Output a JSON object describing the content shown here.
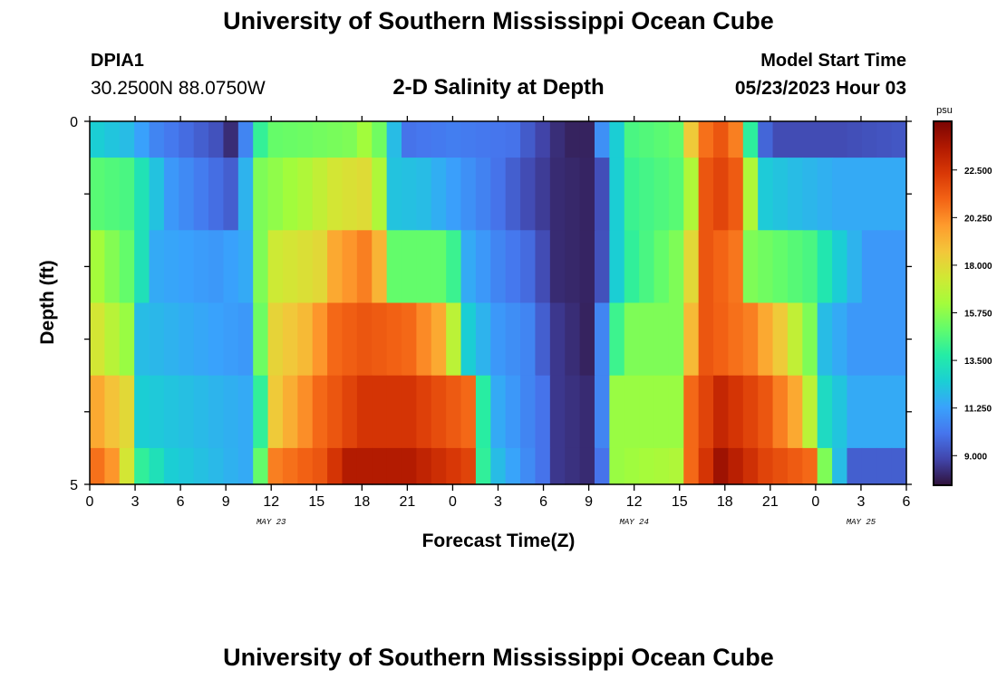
{
  "header": {
    "title": "University of Southern Mississippi Ocean Cube",
    "station_id": "DPIA1",
    "coordinates": "30.2500N  88.0750W",
    "plot_title": "2-D Salinity at Depth",
    "model_start_label": "Model Start Time",
    "model_start_value": "05/23/2023 Hour 03"
  },
  "footer": {
    "title": "University of Southern Mississippi Ocean Cube"
  },
  "colors": {
    "ramp": [
      "#30123b",
      "#4145ab",
      "#4675ed",
      "#39a2fc",
      "#1bcfd4",
      "#24eca6",
      "#61fc6c",
      "#a4fc3b",
      "#d1e834",
      "#f3c63a",
      "#fe9b2d",
      "#f36315",
      "#d93806",
      "#b11901",
      "#7a0403"
    ]
  },
  "chart_data": {
    "type": "heatmap",
    "title": "2-D Salinity at Depth",
    "xlabel": "Forecast Time(Z)",
    "ylabel": "Depth (ft)",
    "x_hours": [
      0,
      3,
      6,
      9,
      12,
      15,
      18,
      21,
      24,
      27,
      30,
      33,
      36,
      39,
      42,
      45,
      48,
      51,
      54
    ],
    "x_tick_labels": [
      "0",
      "3",
      "6",
      "9",
      "12",
      "15",
      "18",
      "21",
      "0",
      "3",
      "6",
      "9",
      "12",
      "15",
      "18",
      "21",
      "0",
      "3",
      "6"
    ],
    "x_range": [
      0,
      54
    ],
    "date_labels": [
      {
        "label": "MAY 23",
        "hour": 12
      },
      {
        "label": "MAY 24",
        "hour": 36
      },
      {
        "label": "MAY 25",
        "hour": 51
      }
    ],
    "y_tick_labels": [
      "0",
      "5"
    ],
    "y_range": [
      0,
      5
    ],
    "depth_levels": 5,
    "colorbar": {
      "unit": "psu",
      "min": 7.6,
      "max": 24.8,
      "ticks": [
        "22.500",
        "20.250",
        "18.000",
        "15.750",
        "13.500",
        "11.250",
        "9.000"
      ]
    },
    "layers": [
      {
        "depth": "0-0.5",
        "keys": [
          [
            0,
            12.5
          ],
          [
            2,
            12
          ],
          [
            4,
            10.5
          ],
          [
            7,
            9.5
          ],
          [
            8.5,
            9
          ],
          [
            9.3,
            7.8
          ],
          [
            10,
            10.5
          ],
          [
            10.7,
            13.5
          ],
          [
            11.5,
            15
          ],
          [
            14,
            15.2
          ],
          [
            17,
            15.5
          ],
          [
            18.5,
            16.5
          ],
          [
            19.3,
            14.5
          ],
          [
            20,
            12
          ],
          [
            21,
            10
          ],
          [
            24,
            10.3
          ],
          [
            28,
            10
          ],
          [
            30,
            8.8
          ],
          [
            31.5,
            8
          ],
          [
            33,
            8
          ],
          [
            33.5,
            9
          ],
          [
            34,
            10.8
          ],
          [
            35,
            12.5
          ],
          [
            36,
            14.5
          ],
          [
            39,
            15
          ],
          [
            39.5,
            16.5
          ],
          [
            40.5,
            20.5
          ],
          [
            42,
            21.5
          ],
          [
            43,
            20.5
          ],
          [
            43.8,
            15.5
          ],
          [
            44.5,
            10
          ],
          [
            46,
            9
          ],
          [
            50,
            9
          ],
          [
            54,
            9.3
          ]
        ]
      },
      {
        "depth": "0.5-1.5",
        "keys": [
          [
            0,
            14.8
          ],
          [
            2,
            14.5
          ],
          [
            5,
            11
          ],
          [
            9,
            9.5
          ],
          [
            9.8,
            10
          ],
          [
            10.2,
            13.5
          ],
          [
            11,
            15.5
          ],
          [
            14,
            16.5
          ],
          [
            16,
            17.5
          ],
          [
            18.5,
            18
          ],
          [
            19,
            16.5
          ],
          [
            20,
            12.2
          ],
          [
            22,
            12
          ],
          [
            25,
            10.8
          ],
          [
            27,
            10
          ],
          [
            29,
            9
          ],
          [
            31,
            8.2
          ],
          [
            33.5,
            8
          ],
          [
            34.2,
            9.5
          ],
          [
            35,
            12.5
          ],
          [
            36,
            14.2
          ],
          [
            39,
            14.8
          ],
          [
            40,
            16.5
          ],
          [
            41,
            21.5
          ],
          [
            42.5,
            22.2
          ],
          [
            43.5,
            20.5
          ],
          [
            44.5,
            12.5
          ],
          [
            47,
            12
          ],
          [
            50,
            11.5
          ],
          [
            54,
            11.5
          ]
        ]
      },
      {
        "depth": "1.5-2.5",
        "keys": [
          [
            0,
            16.2
          ],
          [
            2,
            15
          ],
          [
            4,
            11.5
          ],
          [
            8,
            11
          ],
          [
            10,
            11.5
          ],
          [
            10.7,
            14.5
          ],
          [
            11.5,
            17.2
          ],
          [
            15,
            18
          ],
          [
            16,
            19.5
          ],
          [
            18,
            20.5
          ],
          [
            19.5,
            18.5
          ],
          [
            20,
            15
          ],
          [
            23,
            15
          ],
          [
            24,
            14.2
          ],
          [
            25,
            11.5
          ],
          [
            27,
            10.5
          ],
          [
            29,
            9.8
          ],
          [
            31,
            8.2
          ],
          [
            33.5,
            8
          ],
          [
            34.3,
            9.8
          ],
          [
            35,
            12.5
          ],
          [
            36,
            14
          ],
          [
            39,
            15.5
          ],
          [
            40,
            18
          ],
          [
            41,
            21.5
          ],
          [
            43.5,
            20.5
          ],
          [
            44,
            15.5
          ],
          [
            48,
            14.5
          ],
          [
            50,
            12.5
          ],
          [
            52,
            11
          ],
          [
            54,
            11
          ]
        ]
      },
      {
        "depth": "2.5-3.5",
        "keys": [
          [
            0,
            17.5
          ],
          [
            2,
            16
          ],
          [
            3,
            12
          ],
          [
            10,
            11
          ],
          [
            10.7,
            13.5
          ],
          [
            11.5,
            18
          ],
          [
            14,
            19
          ],
          [
            16,
            21
          ],
          [
            18,
            21.5
          ],
          [
            21,
            21
          ],
          [
            23,
            19.5
          ],
          [
            24.5,
            15.5
          ],
          [
            25,
            12.5
          ],
          [
            27,
            11
          ],
          [
            29,
            10.5
          ],
          [
            31,
            8.5
          ],
          [
            33,
            8
          ],
          [
            33.7,
            9
          ],
          [
            34.5,
            13
          ],
          [
            35.5,
            15.5
          ],
          [
            39,
            15.5
          ],
          [
            40,
            19
          ],
          [
            41,
            21.5
          ],
          [
            44,
            20.5
          ],
          [
            46,
            18.5
          ],
          [
            48,
            15.5
          ],
          [
            49,
            12
          ],
          [
            51,
            11
          ],
          [
            54,
            11
          ]
        ]
      },
      {
        "depth": "3.5-4.5",
        "keys": [
          [
            0,
            19.5
          ],
          [
            2,
            18
          ],
          [
            3,
            12.5
          ],
          [
            10,
            11.5
          ],
          [
            11,
            14
          ],
          [
            12,
            18.5
          ],
          [
            15,
            21
          ],
          [
            18,
            22.5
          ],
          [
            21,
            22.5
          ],
          [
            25,
            21
          ],
          [
            25.5,
            15
          ],
          [
            27,
            11.5
          ],
          [
            30,
            10
          ],
          [
            31,
            8.5
          ],
          [
            33,
            8.2
          ],
          [
            34,
            10.5
          ],
          [
            35,
            16
          ],
          [
            39,
            16
          ],
          [
            40,
            21
          ],
          [
            42,
            23
          ],
          [
            45,
            21.5
          ],
          [
            47,
            19.5
          ],
          [
            48.5,
            15.5
          ],
          [
            49,
            13
          ],
          [
            51,
            11.5
          ],
          [
            54,
            11.5
          ]
        ]
      },
      {
        "depth": "4.5-5",
        "keys": [
          [
            0,
            20.8
          ],
          [
            1,
            20
          ],
          [
            2,
            17.5
          ],
          [
            3,
            14
          ],
          [
            5,
            12.5
          ],
          [
            10,
            11.5
          ],
          [
            11,
            15
          ],
          [
            12,
            20.5
          ],
          [
            15,
            21.5
          ],
          [
            17,
            23.5
          ],
          [
            21,
            23.5
          ],
          [
            25,
            22
          ],
          [
            25.6,
            16
          ],
          [
            26,
            14
          ],
          [
            27,
            12
          ],
          [
            30,
            10
          ],
          [
            31,
            8.5
          ],
          [
            33,
            8.2
          ],
          [
            34,
            10
          ],
          [
            35,
            16
          ],
          [
            39,
            16.5
          ],
          [
            40,
            21
          ],
          [
            42,
            24
          ],
          [
            45,
            22
          ],
          [
            48,
            21
          ],
          [
            49,
            15.5
          ],
          [
            50,
            12
          ],
          [
            51,
            9.5
          ],
          [
            54,
            9.5
          ]
        ]
      }
    ]
  }
}
